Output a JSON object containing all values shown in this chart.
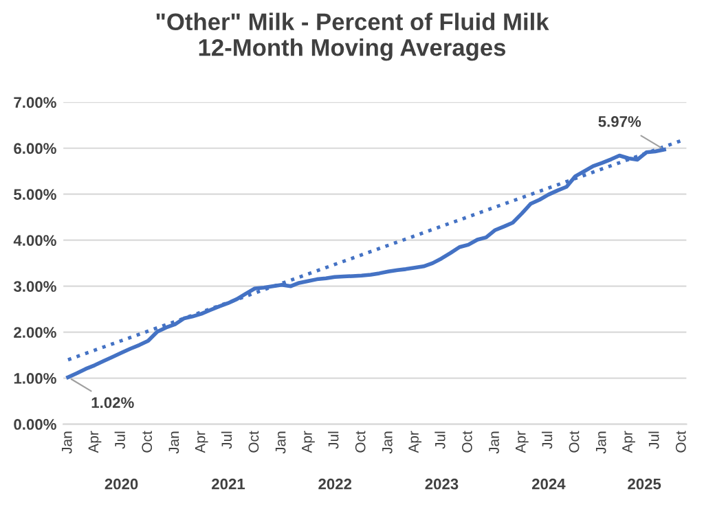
{
  "chart_data": {
    "type": "line",
    "title": "\"Other\" Milk - Percent of Fluid Milk\n12-Month Moving Averages",
    "x": [
      "2020-01",
      "2020-02",
      "2020-03",
      "2020-04",
      "2020-05",
      "2020-06",
      "2020-07",
      "2020-08",
      "2020-09",
      "2020-10",
      "2020-11",
      "2020-12",
      "2021-01",
      "2021-02",
      "2021-03",
      "2021-04",
      "2021-05",
      "2021-06",
      "2021-07",
      "2021-08",
      "2021-09",
      "2021-10",
      "2021-11",
      "2021-12",
      "2022-01",
      "2022-02",
      "2022-03",
      "2022-04",
      "2022-05",
      "2022-06",
      "2022-07",
      "2022-08",
      "2022-09",
      "2022-10",
      "2022-11",
      "2022-12",
      "2023-01",
      "2023-02",
      "2023-03",
      "2023-04",
      "2023-05",
      "2023-06",
      "2023-07",
      "2023-08",
      "2023-09",
      "2023-10",
      "2023-11",
      "2023-12",
      "2024-01",
      "2024-02",
      "2024-03",
      "2024-04",
      "2024-05",
      "2024-06",
      "2024-07",
      "2024-08",
      "2024-09",
      "2024-10",
      "2024-11",
      "2024-12",
      "2025-01",
      "2025-02",
      "2025-03",
      "2025-04",
      "2025-05",
      "2025-06",
      "2025-07",
      "2025-08"
    ],
    "series": [
      {
        "color": "#4472c4",
        "line_style": "solid",
        "values": [
          1.02,
          1.11,
          1.2,
          1.28,
          1.37,
          1.46,
          1.55,
          1.64,
          1.72,
          1.81,
          2.01,
          2.1,
          2.17,
          2.3,
          2.34,
          2.4,
          2.48,
          2.56,
          2.63,
          2.72,
          2.84,
          2.95,
          2.97,
          3.0,
          3.03,
          3.0,
          3.07,
          3.11,
          3.15,
          3.17,
          3.2,
          3.21,
          3.22,
          3.23,
          3.25,
          3.28,
          3.32,
          3.35,
          3.37,
          3.4,
          3.43,
          3.5,
          3.6,
          3.72,
          3.85,
          3.9,
          4.01,
          4.06,
          4.22,
          4.3,
          4.38,
          4.58,
          4.79,
          4.88,
          4.99,
          5.08,
          5.16,
          5.39,
          5.5,
          5.61,
          5.68,
          5.76,
          5.84,
          5.78,
          5.75,
          5.91,
          5.93,
          5.97
        ],
        "value_labels": [
          "1.02%",
          null,
          null,
          null,
          null,
          null,
          null,
          null,
          null,
          null,
          null,
          null,
          null,
          null,
          null,
          null,
          null,
          null,
          null,
          null,
          null,
          null,
          null,
          null,
          null,
          null,
          null,
          null,
          null,
          null,
          null,
          null,
          null,
          null,
          null,
          null,
          null,
          null,
          null,
          null,
          null,
          null,
          null,
          null,
          null,
          null,
          null,
          null,
          null,
          null,
          null,
          null,
          null,
          null,
          null,
          null,
          null,
          null,
          null,
          null,
          null,
          null,
          null,
          null,
          null,
          null,
          null,
          "5.97%"
        ]
      },
      {
        "type": "line",
        "color": "#4472c4",
        "line_style": "dotted",
        "x": [
          "2020-01",
          "2025-10"
        ],
        "values": [
          1.4,
          6.17
        ]
      }
    ],
    "xlim": [
      "2019-12-16",
      "2025-10-16"
    ],
    "xticks": [
      {
        "value": "2020-01",
        "label": "Jan"
      },
      {
        "value": "2020-04",
        "label": "Apr"
      },
      {
        "value": "2020-07",
        "label": "Jul"
      },
      {
        "value": "2020-10",
        "label": "Oct"
      },
      {
        "value": "2021-01",
        "label": "Jan"
      },
      {
        "value": "2021-04",
        "label": "Apr"
      },
      {
        "value": "2021-07",
        "label": "Jul"
      },
      {
        "value": "2021-10",
        "label": "Oct"
      },
      {
        "value": "2022-01",
        "label": "Jan"
      },
      {
        "value": "2022-04",
        "label": "Apr"
      },
      {
        "value": "2022-07",
        "label": "Jul"
      },
      {
        "value": "2022-10",
        "label": "Oct"
      },
      {
        "value": "2023-01",
        "label": "Jan"
      },
      {
        "value": "2023-04",
        "label": "Apr"
      },
      {
        "value": "2023-07",
        "label": "Jul"
      },
      {
        "value": "2023-10",
        "label": "Oct"
      },
      {
        "value": "2024-01",
        "label": "Jan"
      },
      {
        "value": "2024-04",
        "label": "Apr"
      },
      {
        "value": "2024-07",
        "label": "Jul"
      },
      {
        "value": "2024-10",
        "label": "Oct"
      },
      {
        "value": "2025-01",
        "label": "Jan"
      },
      {
        "value": "2025-04",
        "label": "Apr"
      },
      {
        "value": "2025-07",
        "label": "Jul"
      },
      {
        "value": "2025-10",
        "label": "Oct"
      }
    ],
    "ylim": [
      0,
      7
    ],
    "yticks": [
      {
        "value": 0,
        "label": "0.00%"
      },
      {
        "value": 1,
        "label": "1.00%"
      },
      {
        "value": 2,
        "label": "2.00%"
      },
      {
        "value": 3,
        "label": "3.00%"
      },
      {
        "value": 4,
        "label": "4.00%"
      },
      {
        "value": 5,
        "label": "5.00%"
      },
      {
        "value": 6,
        "label": "6.00%"
      },
      {
        "value": 7,
        "label": "7.00%"
      }
    ],
    "annotations": [
      "2020",
      "2021",
      "2022",
      "2023",
      "2024",
      "2025"
    ],
    "grid": "y",
    "legend": false,
    "marker": "none"
  }
}
